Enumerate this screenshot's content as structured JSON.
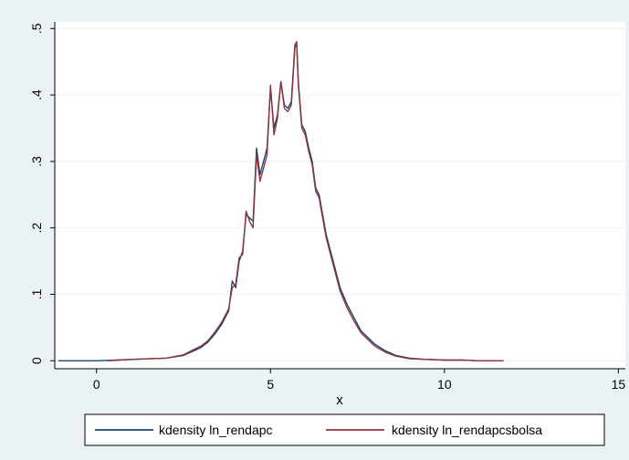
{
  "chart_data": {
    "type": "line",
    "title": "",
    "xlabel": "x",
    "ylabel": "",
    "xlim": [
      -1.2,
      15.2
    ],
    "ylim": [
      -0.012,
      0.51
    ],
    "x_ticks": [
      0,
      5,
      10,
      15
    ],
    "x_tick_labels": [
      "0",
      "5",
      "10",
      "15"
    ],
    "y_ticks": [
      0,
      0.1,
      0.2,
      0.3,
      0.4,
      0.5
    ],
    "y_tick_labels": [
      "0",
      ".1",
      ".2",
      ".3",
      ".4",
      ".5"
    ],
    "grid": "horizontal",
    "legend_position": "bottom",
    "series": [
      {
        "name": "kdensity ln_rendapc",
        "color": "#1a476f",
        "x": [
          -1.1,
          0.0,
          1.0,
          1.5,
          2.0,
          2.5,
          2.8,
          3.0,
          3.2,
          3.4,
          3.6,
          3.8,
          3.9,
          4.0,
          4.1,
          4.2,
          4.3,
          4.4,
          4.5,
          4.6,
          4.7,
          4.8,
          4.9,
          5.0,
          5.1,
          5.2,
          5.3,
          5.4,
          5.5,
          5.6,
          5.7,
          5.75,
          5.8,
          5.9,
          6.0,
          6.1,
          6.2,
          6.3,
          6.4,
          6.5,
          6.6,
          6.8,
          7.0,
          7.2,
          7.4,
          7.6,
          7.8,
          8.0,
          8.3,
          8.6,
          9.0,
          9.5,
          10.0,
          10.5,
          11.0,
          11.7
        ],
        "y": [
          0.0,
          0.0,
          0.002,
          0.003,
          0.004,
          0.008,
          0.015,
          0.02,
          0.028,
          0.04,
          0.055,
          0.075,
          0.12,
          0.11,
          0.15,
          0.165,
          0.22,
          0.215,
          0.21,
          0.32,
          0.28,
          0.3,
          0.32,
          0.41,
          0.35,
          0.37,
          0.42,
          0.385,
          0.38,
          0.39,
          0.475,
          0.48,
          0.42,
          0.355,
          0.345,
          0.32,
          0.3,
          0.26,
          0.25,
          0.22,
          0.19,
          0.15,
          0.11,
          0.085,
          0.065,
          0.045,
          0.035,
          0.025,
          0.015,
          0.008,
          0.004,
          0.002,
          0.001,
          0.001,
          0.0,
          0.0
        ]
      },
      {
        "name": "kdensity ln_rendapcsbolsa",
        "color": "#90353b",
        "x": [
          0.3,
          1.0,
          1.5,
          2.0,
          2.5,
          2.8,
          3.0,
          3.2,
          3.4,
          3.6,
          3.8,
          3.9,
          4.0,
          4.1,
          4.2,
          4.3,
          4.4,
          4.5,
          4.6,
          4.7,
          4.8,
          4.9,
          5.0,
          5.1,
          5.2,
          5.3,
          5.4,
          5.5,
          5.6,
          5.7,
          5.75,
          5.8,
          5.9,
          6.0,
          6.1,
          6.2,
          6.3,
          6.4,
          6.5,
          6.6,
          6.8,
          7.0,
          7.2,
          7.4,
          7.6,
          7.8,
          8.0,
          8.3,
          8.6,
          9.0,
          9.5,
          10.0,
          10.5,
          11.0,
          11.7
        ],
        "y": [
          0.0,
          0.002,
          0.003,
          0.004,
          0.009,
          0.017,
          0.022,
          0.03,
          0.043,
          0.058,
          0.078,
          0.11,
          0.115,
          0.155,
          0.16,
          0.225,
          0.21,
          0.2,
          0.31,
          0.27,
          0.29,
          0.31,
          0.415,
          0.34,
          0.365,
          0.42,
          0.38,
          0.375,
          0.385,
          0.47,
          0.48,
          0.415,
          0.35,
          0.34,
          0.315,
          0.295,
          0.255,
          0.245,
          0.215,
          0.185,
          0.145,
          0.105,
          0.08,
          0.06,
          0.042,
          0.032,
          0.022,
          0.013,
          0.007,
          0.003,
          0.002,
          0.001,
          0.001,
          0.0,
          0.0
        ]
      }
    ]
  }
}
